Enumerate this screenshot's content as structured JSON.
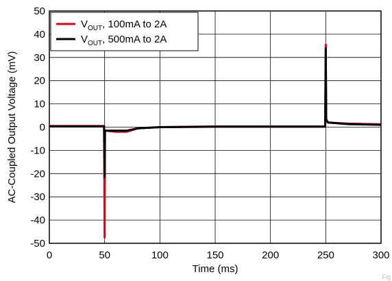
{
  "corner_note": "Fig",
  "chart_data": {
    "type": "line",
    "xlabel": "Time (ms)",
    "ylabel": "AC-Coupled Output Voltage (mV)",
    "xlim": [
      0,
      300
    ],
    "ylim": [
      -50,
      50
    ],
    "x_ticks": [
      0,
      50,
      100,
      150,
      200,
      250,
      300
    ],
    "y_ticks": [
      50,
      40,
      30,
      20,
      10,
      0,
      -10,
      -20,
      -30,
      -40,
      -50
    ],
    "grid": true,
    "legend_position": "top-left",
    "series": [
      {
        "name_main": "V",
        "name_sub": "OUT",
        "name_rest": ", 100mA to 2A",
        "color": "#e0001a",
        "points": [
          [
            0,
            0.5
          ],
          [
            49.5,
            0.5
          ],
          [
            50,
            -47.5
          ],
          [
            50.3,
            -2
          ],
          [
            51,
            -1.5
          ],
          [
            60,
            -2
          ],
          [
            70,
            -2
          ],
          [
            80,
            -0.5
          ],
          [
            100,
            0
          ],
          [
            150,
            0.3
          ],
          [
            200,
            0.3
          ],
          [
            249.5,
            0.3
          ],
          [
            250,
            35.5
          ],
          [
            250.4,
            3.5
          ],
          [
            252,
            2
          ],
          [
            270,
            1.5
          ],
          [
            300,
            1.2
          ]
        ]
      },
      {
        "name_main": "V",
        "name_sub": "OUT",
        "name_rest": ", 500mA to 2A",
        "color": "#000000",
        "points": [
          [
            0,
            0.3
          ],
          [
            49.5,
            0.3
          ],
          [
            50,
            -21.5
          ],
          [
            50.3,
            -2
          ],
          [
            51,
            -1.5
          ],
          [
            60,
            -1.5
          ],
          [
            70,
            -1.5
          ],
          [
            80,
            -0.5
          ],
          [
            100,
            0
          ],
          [
            150,
            0.2
          ],
          [
            200,
            0.2
          ],
          [
            249.5,
            0.2
          ],
          [
            250,
            34
          ],
          [
            250.4,
            3
          ],
          [
            252,
            2
          ],
          [
            270,
            1.3
          ],
          [
            300,
            1
          ]
        ]
      }
    ]
  }
}
